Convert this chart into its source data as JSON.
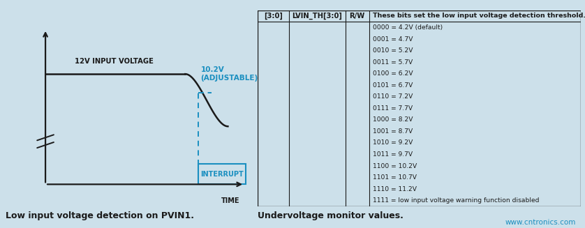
{
  "bg_color": "#cce0ea",
  "left_panel_caption": "Low input voltage detection on PVIN1.",
  "right_panel_caption": "Undervoltage monitor values.",
  "watermark": "www.cntronics.com",
  "signal_label": "12V INPUT VOLTAGE",
  "threshold_label": "10.2V\n(ADJUSTABLE)",
  "interrupt_label": "INTERRUPT",
  "time_label": "TIME",
  "blue_color": "#1a8fc0",
  "line_color": "#1a1a1a",
  "table_header_col4": "These bits set the low input voltage detection threshold.",
  "table_header": [
    "[3:0]",
    "LVIN_TH[3:0]",
    "R/W"
  ],
  "table_rows": [
    "0000 = 4.2V (default)",
    "0001 = 4.7V",
    "0010 = 5.2V",
    "0011 = 5.7V",
    "0100 = 6.2V",
    "0101 = 6.7V",
    "0110 = 7.2V",
    "0111 = 7.7V",
    "1000 = 8.2V",
    "1001 = 8.7V",
    "1010 = 9.2V",
    "1011 = 9.7V",
    "1100 = 10.2V",
    "1101 = 10.7V",
    "1110 = 11.2V",
    "1111 = low input voltage warning function disabled"
  ]
}
